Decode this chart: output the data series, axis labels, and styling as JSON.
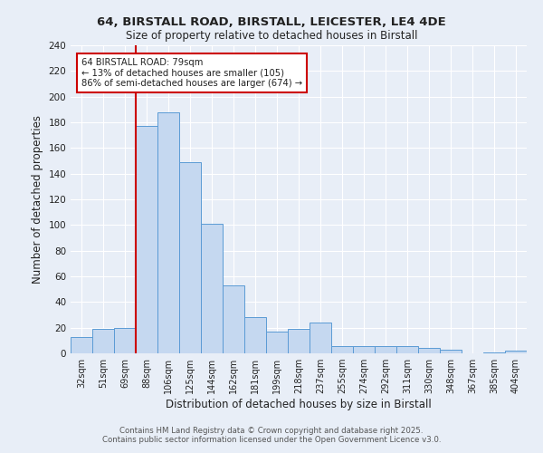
{
  "title_line1": "64, BIRSTALL ROAD, BIRSTALL, LEICESTER, LE4 4DE",
  "title_line2": "Size of property relative to detached houses in Birstall",
  "xlabel": "Distribution of detached houses by size in Birstall",
  "ylabel": "Number of detached properties",
  "categories": [
    "32sqm",
    "51sqm",
    "69sqm",
    "88sqm",
    "106sqm",
    "125sqm",
    "144sqm",
    "162sqm",
    "181sqm",
    "199sqm",
    "218sqm",
    "237sqm",
    "255sqm",
    "274sqm",
    "292sqm",
    "311sqm",
    "330sqm",
    "348sqm",
    "367sqm",
    "385sqm",
    "404sqm"
  ],
  "values": [
    13,
    19,
    20,
    177,
    188,
    149,
    101,
    53,
    28,
    17,
    19,
    24,
    6,
    6,
    6,
    6,
    4,
    3,
    0,
    1,
    2
  ],
  "bar_color": "#c5d8f0",
  "bar_edge_color": "#5b9bd5",
  "redline_x": 2.5,
  "redline_color": "#cc0000",
  "annotation_text": "64 BIRSTALL ROAD: 79sqm\n← 13% of detached houses are smaller (105)\n86% of semi-detached houses are larger (674) →",
  "annotation_box_color": "#ffffff",
  "annotation_box_edge": "#cc0000",
  "footer_line1": "Contains HM Land Registry data © Crown copyright and database right 2025.",
  "footer_line2": "Contains public sector information licensed under the Open Government Licence v3.0.",
  "background_color": "#e8eef7",
  "plot_bg_color": "#e8eef7",
  "ylim": [
    0,
    240
  ],
  "yticks": [
    0,
    20,
    40,
    60,
    80,
    100,
    120,
    140,
    160,
    180,
    200,
    220,
    240
  ]
}
